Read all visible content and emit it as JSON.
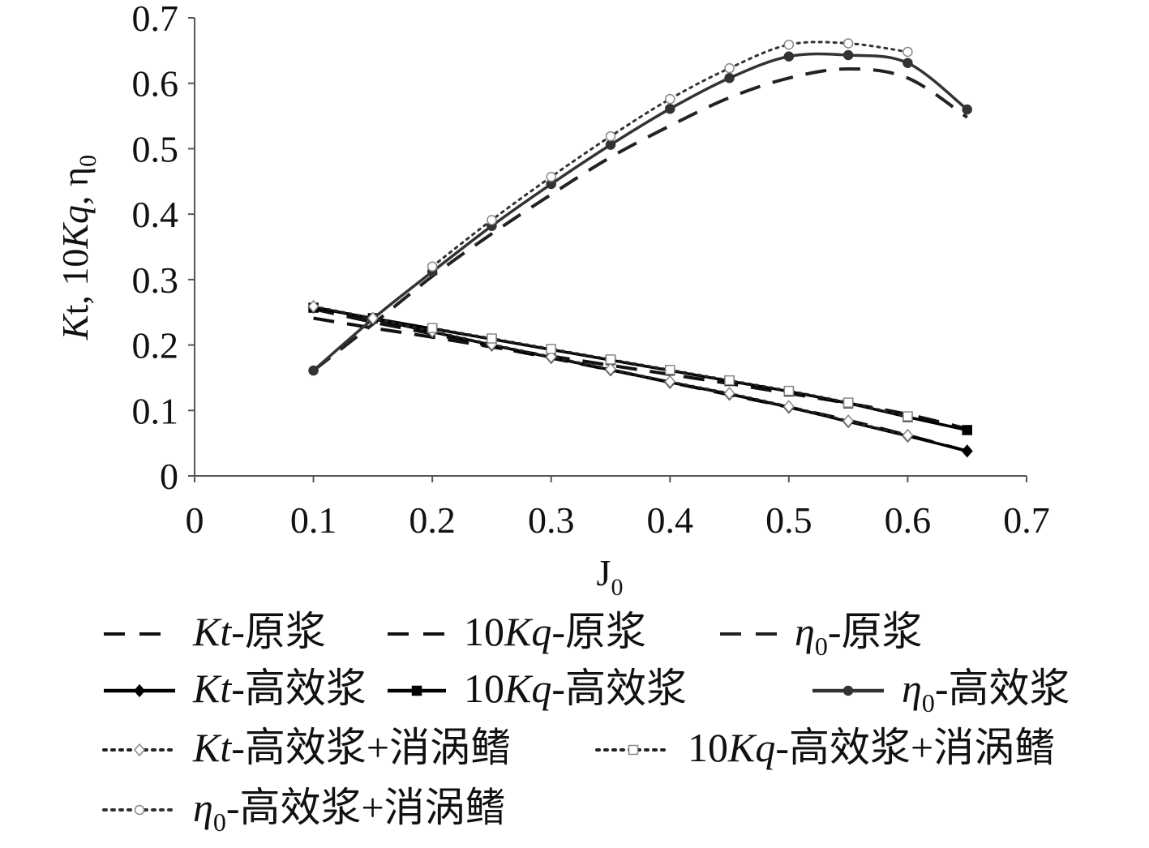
{
  "chart_data": {
    "type": "line",
    "xlabel": "J0",
    "ylabel": "Kt, 10Kq, η0",
    "xlim": [
      0,
      0.7
    ],
    "ylim": [
      0,
      0.7
    ],
    "x_ticks": [
      "0",
      "0.1",
      "0.2",
      "0.3",
      "0.4",
      "0.5",
      "0.6",
      "0.7"
    ],
    "y_ticks": [
      "0",
      "0.1",
      "0.2",
      "0.3",
      "0.4",
      "0.5",
      "0.6",
      "0.7"
    ],
    "grid": false,
    "legend_position": "bottom",
    "series": [
      {
        "key": "kt_orig",
        "name": "Kt-原浆",
        "style": "dashed",
        "marker": "none",
        "color": "#111111",
        "x": [
          0.1,
          0.15,
          0.2,
          0.25,
          0.3,
          0.35,
          0.4,
          0.45,
          0.5,
          0.55,
          0.6,
          0.65
        ],
        "y": [
          0.255,
          0.235,
          0.217,
          0.198,
          0.18,
          0.162,
          0.143,
          0.124,
          0.105,
          0.085,
          0.062,
          0.038
        ]
      },
      {
        "key": "kq_orig",
        "name": "10Kq-原浆",
        "style": "dashed",
        "marker": "none",
        "color": "#111111",
        "x": [
          0.1,
          0.15,
          0.2,
          0.25,
          0.3,
          0.35,
          0.4,
          0.45,
          0.5,
          0.55,
          0.6,
          0.65
        ],
        "y": [
          0.241,
          0.226,
          0.212,
          0.197,
          0.183,
          0.169,
          0.155,
          0.141,
          0.126,
          0.111,
          0.094,
          0.072
        ]
      },
      {
        "key": "eta_orig",
        "name": "η0-原浆",
        "style": "dashed",
        "marker": "none",
        "color": "#222222",
        "x": [
          0.1,
          0.15,
          0.2,
          0.25,
          0.3,
          0.35,
          0.4,
          0.45,
          0.5,
          0.55,
          0.6,
          0.65
        ],
        "y": [
          0.161,
          0.232,
          0.305,
          0.37,
          0.43,
          0.487,
          0.535,
          0.578,
          0.608,
          0.622,
          0.608,
          0.548
        ]
      },
      {
        "key": "kt_high",
        "name": "Kt-高效浆",
        "style": "solid",
        "marker": "diamond-filled",
        "color": "#000000",
        "x": [
          0.1,
          0.15,
          0.2,
          0.25,
          0.3,
          0.35,
          0.4,
          0.45,
          0.5,
          0.55,
          0.6,
          0.65
        ],
        "y": [
          0.258,
          0.24,
          0.22,
          0.2,
          0.181,
          0.162,
          0.143,
          0.125,
          0.105,
          0.083,
          0.061,
          0.038
        ]
      },
      {
        "key": "kq_high",
        "name": "10Kq-高效浆",
        "style": "solid",
        "marker": "square-filled",
        "color": "#000000",
        "x": [
          0.1,
          0.15,
          0.2,
          0.25,
          0.3,
          0.35,
          0.4,
          0.45,
          0.5,
          0.55,
          0.6,
          0.65
        ],
        "y": [
          0.257,
          0.241,
          0.225,
          0.209,
          0.193,
          0.177,
          0.161,
          0.145,
          0.129,
          0.111,
          0.09,
          0.07
        ]
      },
      {
        "key": "eta_high",
        "name": "η0-高效浆",
        "style": "solid",
        "marker": "circle-filled",
        "color": "#333333",
        "x": [
          0.1,
          0.15,
          0.2,
          0.25,
          0.3,
          0.35,
          0.4,
          0.45,
          0.5,
          0.55,
          0.6,
          0.65
        ],
        "y": [
          0.161,
          0.24,
          0.312,
          0.382,
          0.446,
          0.506,
          0.561,
          0.608,
          0.641,
          0.643,
          0.631,
          0.56
        ]
      },
      {
        "key": "kt_fin",
        "name": "Kt-高效浆+消涡鳍",
        "style": "dotted",
        "marker": "diamond-open",
        "color": "#222222",
        "x": [
          0.1,
          0.15,
          0.2,
          0.25,
          0.3,
          0.35,
          0.4,
          0.45,
          0.5,
          0.55,
          0.6
        ],
        "y": [
          0.259,
          0.241,
          0.221,
          0.201,
          0.182,
          0.163,
          0.144,
          0.126,
          0.106,
          0.084,
          0.062
        ]
      },
      {
        "key": "kq_fin",
        "name": "10Kq-高效浆+消涡鳍",
        "style": "dotted",
        "marker": "square-open",
        "color": "#222222",
        "x": [
          0.2,
          0.25,
          0.3,
          0.35,
          0.4,
          0.45,
          0.5,
          0.55,
          0.6
        ],
        "y": [
          0.226,
          0.21,
          0.194,
          0.178,
          0.162,
          0.146,
          0.13,
          0.112,
          0.091
        ]
      },
      {
        "key": "eta_fin",
        "name": "η0-高效浆+消涡鳍",
        "style": "dotted",
        "marker": "circle-open",
        "color": "#333333",
        "x": [
          0.2,
          0.25,
          0.3,
          0.35,
          0.4,
          0.45,
          0.5,
          0.55,
          0.6
        ],
        "y": [
          0.32,
          0.391,
          0.457,
          0.519,
          0.576,
          0.623,
          0.659,
          0.661,
          0.648
        ]
      }
    ]
  }
}
